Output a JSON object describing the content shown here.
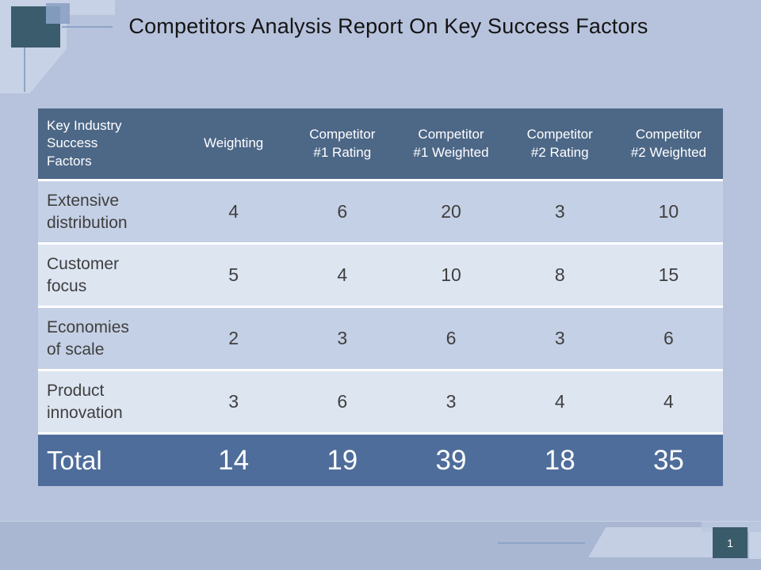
{
  "slide": {
    "title": "Competitors Analysis Report On Key Success Factors",
    "page_number": "1"
  },
  "table": {
    "headers": [
      "Key Industry\nSuccess\nFactors",
      "Weighting",
      "Competitor\n#1 Rating",
      "Competitor\n#1 Weighted",
      "Competitor\n#2 Rating",
      "Competitor\n#2 Weighted"
    ],
    "rows": [
      {
        "factor": "Extensive\ndistribution",
        "values": [
          "4",
          "6",
          "20",
          "3",
          "10"
        ]
      },
      {
        "factor": "Customer\nfocus",
        "values": [
          "5",
          "4",
          "10",
          "8",
          "15"
        ]
      },
      {
        "factor": "Economies\nof scale",
        "values": [
          "2",
          "3",
          "6",
          "3",
          "6"
        ]
      },
      {
        "factor": "Product\ninnovation",
        "values": [
          "3",
          "6",
          "3",
          "4",
          "4"
        ]
      }
    ],
    "total": {
      "label": "Total",
      "values": [
        "14",
        "19",
        "39",
        "18",
        "35"
      ]
    }
  },
  "colors": {
    "background": "#b7c3dc",
    "header_bg": "#4d6787",
    "row_dark": "#c4d0e5",
    "row_light": "#dde5f1",
    "total_bg": "#4e6d9b",
    "footer_band": "#a9b7d2",
    "accent_square": "#3b5c6c",
    "text_dark": "#3f3f3f",
    "text_light": "#ffffff"
  }
}
